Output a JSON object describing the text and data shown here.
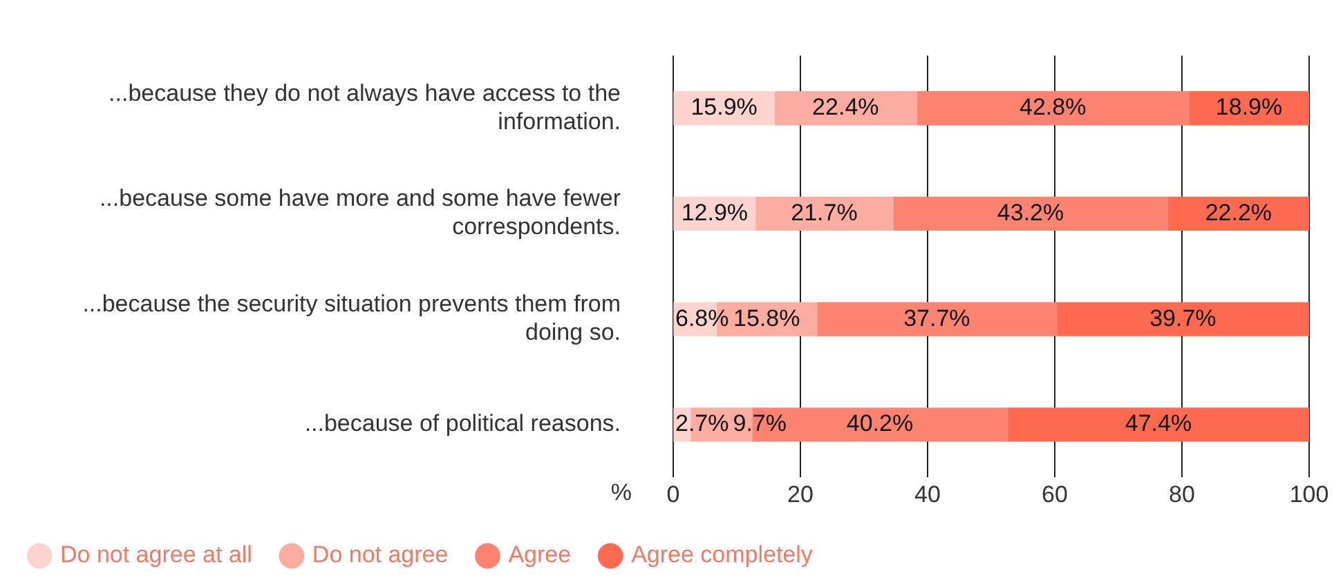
{
  "chart_data": {
    "type": "bar",
    "orientation": "horizontal",
    "stacked": true,
    "xlabel": "%",
    "categories": [
      "...because they do not always have access to the information.",
      "...because some have more and some have fewer correspondents.",
      "...because the security situation prevents them from doing so.",
      "...because of political reasons."
    ],
    "series": [
      {
        "name": "Do not agree at all",
        "color": "#fdd3ce",
        "values": [
          15.9,
          12.9,
          6.8,
          2.7
        ],
        "value_labels": [
          "15.9%",
          "12.9%",
          "6.8%",
          "2.7%"
        ]
      },
      {
        "name": "Do not agree",
        "color": "#fdaca1",
        "values": [
          22.4,
          21.7,
          15.8,
          9.7
        ],
        "value_labels": [
          "22.4%",
          "21.7%",
          "15.8%",
          "9.7%"
        ]
      },
      {
        "name": "Agree",
        "color": "#fd8371",
        "values": [
          42.8,
          43.2,
          37.7,
          40.2
        ],
        "value_labels": [
          "42.8%",
          "43.2%",
          "37.7%",
          "40.2%"
        ]
      },
      {
        "name": "Agree completely",
        "color": "#fe6a50",
        "values": [
          18.9,
          22.2,
          39.7,
          47.4
        ],
        "value_labels": [
          "18.9%",
          "22.2%",
          "39.7%",
          "47.4%"
        ]
      }
    ],
    "xlim": [
      0,
      100
    ],
    "xticks": [
      0,
      20,
      40,
      60,
      80,
      100
    ],
    "grid": "x",
    "legend": "bottom left",
    "marker": "circle"
  }
}
